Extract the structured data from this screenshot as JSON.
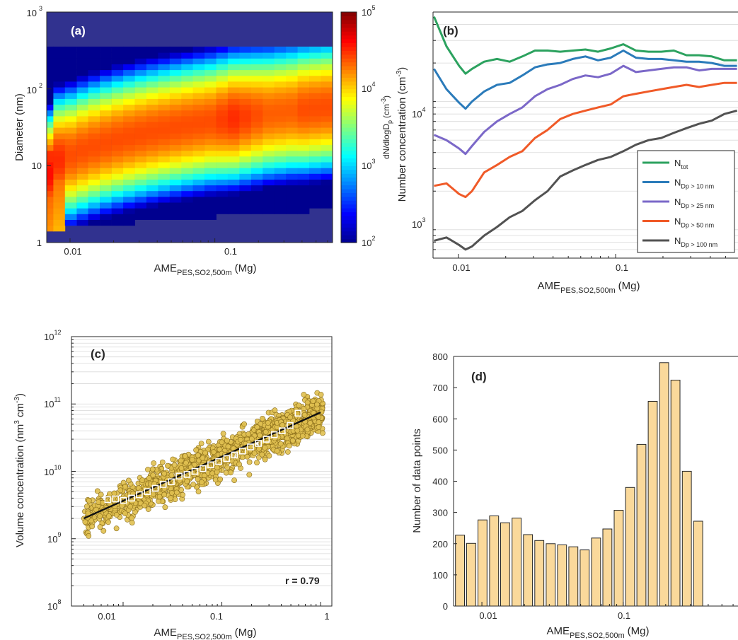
{
  "chart_data": [
    {
      "panel": "(a)",
      "type": "heatmap",
      "xlabel": "AME",
      "xlabel_sub": "PES,SO2,500m",
      "xlabel_unit": "(Mg)",
      "ylabel": "Diameter (nm)",
      "xscale": "log",
      "yscale": "log",
      "xlim": [
        0.0069,
        0.65
      ],
      "ylim": [
        1,
        1000
      ],
      "x_ticks": [
        0.01,
        0.1
      ],
      "x_tick_labels": [
        "0.01",
        "0.1"
      ],
      "y_ticks": [
        1,
        10,
        100,
        1000
      ],
      "y_tick_labels": [
        "1",
        "10"
      ],
      "y_tick_labels_pow": [
        {
          "base": "10",
          "exp": "2"
        },
        {
          "base": "10",
          "exp": "3"
        }
      ],
      "colorbar": {
        "label": "dN/dlogD",
        "label_sub": "p",
        "label_unit": "(cm",
        "label_unit_exp": "-3",
        "label_unit_end": ")",
        "scale": "log",
        "range": [
          100,
          100000
        ],
        "ticks": [
          {
            "base": "10",
            "exp": "2"
          },
          {
            "base": "10",
            "exp": "3"
          },
          {
            "base": "10",
            "exp": "4"
          },
          {
            "base": "10",
            "exp": "5"
          }
        ]
      },
      "columns_x": [
        0.007,
        0.0084,
        0.0101,
        0.0122,
        0.0146,
        0.0176,
        0.0212,
        0.0255,
        0.0307,
        0.0369,
        0.0444,
        0.0534,
        0.0643,
        0.0773,
        0.093,
        0.112,
        0.1346,
        0.162,
        0.195,
        0.2345,
        0.2822,
        0.3395,
        0.4085,
        0.4915,
        0.5914
      ],
      "mode_diameter_nm": [
        8,
        12,
        14,
        16,
        18,
        20,
        22,
        24,
        26,
        28,
        30,
        32,
        34,
        36,
        38,
        40,
        42,
        44,
        46,
        48,
        50,
        52,
        54,
        56,
        58
      ],
      "peak_log10_dNdlogDp": [
        4.6,
        4.5,
        4.4,
        4.4,
        4.4,
        4.4,
        4.4,
        4.4,
        4.4,
        4.4,
        4.4,
        4.4,
        4.4,
        4.4,
        4.4,
        4.45,
        4.5,
        4.45,
        4.4,
        4.35,
        4.35,
        4.35,
        4.4,
        4.4,
        4.4
      ],
      "lower_edge_nm": [
        1.35,
        1.45,
        1.55,
        1.6,
        1.65,
        1.7,
        1.75,
        1.8,
        1.85,
        1.9,
        1.95,
        2.0,
        2.05,
        2.1,
        2.15,
        2.2,
        2.25,
        2.3,
        2.35,
        2.4,
        2.45,
        2.5,
        2.55,
        2.6,
        2.65
      ],
      "upper_edge_nm": [
        350,
        350,
        350,
        350,
        350,
        350,
        350,
        350,
        350,
        350,
        350,
        350,
        350,
        350,
        350,
        350,
        350,
        350,
        350,
        350,
        350,
        350,
        350,
        350,
        350
      ]
    },
    {
      "panel": "(b)",
      "type": "line",
      "xlabel": "AME",
      "xlabel_sub": "PES,SO2,500m",
      "xlabel_unit": "(Mg)",
      "ylabel": "Number concentration (cm",
      "ylabel_exp": "-3",
      "ylabel_end": ")",
      "xscale": "log",
      "yscale": "log",
      "xlim": [
        0.0069,
        0.6
      ],
      "ylim": [
        600,
        50000
      ],
      "x_ticks": [
        0.01,
        0.1
      ],
      "x_tick_labels": [
        "0.01",
        "0.1"
      ],
      "y_ticks": [
        1000,
        10000
      ],
      "y_tick_labels_pow": [
        {
          "base": "10",
          "exp": "3"
        },
        {
          "base": "10",
          "exp": "4"
        }
      ],
      "legend_position": "bottom-right",
      "x": [
        0.007,
        0.0084,
        0.0101,
        0.0111,
        0.0122,
        0.0146,
        0.0176,
        0.0212,
        0.0255,
        0.0307,
        0.0369,
        0.0444,
        0.0534,
        0.0643,
        0.0773,
        0.093,
        0.112,
        0.1346,
        0.162,
        0.195,
        0.2345,
        0.2822,
        0.3395,
        0.4085,
        0.4915,
        0.5914
      ],
      "series": [
        {
          "name": "N",
          "sub": "tot",
          "color": "#2ca25f",
          "values": [
            46000,
            27000,
            19000,
            16500,
            18000,
            20500,
            21500,
            20500,
            22500,
            25000,
            25000,
            24500,
            25000,
            25500,
            24500,
            26000,
            28000,
            25000,
            24500,
            24500,
            25000,
            23000,
            23000,
            22500,
            21000,
            21000
          ]
        },
        {
          "name": "N",
          "sub": "Dp > 10 nm",
          "color": "#2b7bba",
          "values": [
            18000,
            12500,
            9800,
            8800,
            10000,
            12000,
            13500,
            14000,
            16000,
            18500,
            19500,
            20000,
            21500,
            22500,
            21000,
            22000,
            25000,
            22000,
            21500,
            21500,
            21000,
            20500,
            20500,
            20000,
            19000,
            19000
          ]
        },
        {
          "name": "N",
          "sub": "Dp > 25 nm",
          "color": "#7b68c8",
          "values": [
            5500,
            5000,
            4300,
            3900,
            4500,
            5800,
            7000,
            8000,
            9000,
            11000,
            12500,
            13500,
            15000,
            16000,
            15500,
            16500,
            19000,
            17000,
            17500,
            18000,
            18500,
            18500,
            17500,
            18000,
            18000,
            18000
          ]
        },
        {
          "name": "N",
          "sub": "Dp > 50 nm",
          "color": "#f05a28",
          "values": [
            2200,
            2300,
            1900,
            1800,
            2000,
            2800,
            3200,
            3700,
            4100,
            5200,
            6000,
            7300,
            8000,
            8500,
            9000,
            9500,
            11000,
            11500,
            12000,
            12500,
            13000,
            13500,
            13000,
            13500,
            14000,
            14000
          ]
        },
        {
          "name": "N",
          "sub": "Dp > 100 nm",
          "color": "#525252",
          "values": [
            820,
            870,
            760,
            700,
            740,
            900,
            1050,
            1250,
            1400,
            1700,
            2000,
            2600,
            2900,
            3200,
            3500,
            3700,
            4100,
            4600,
            5000,
            5200,
            5700,
            6200,
            6700,
            7100,
            8000,
            8500
          ]
        }
      ]
    },
    {
      "panel": "(c)",
      "type": "scatter",
      "xlabel": "AME",
      "xlabel_sub": "PES,SO2,500m",
      "xlabel_unit": "(Mg)",
      "ylabel": "Volume concentration (nm",
      "ylabel_exp1": "3",
      "ylabel_mid": " cm",
      "ylabel_exp2": "-3",
      "ylabel_end": ")",
      "xscale": "log",
      "yscale": "log",
      "xlim": [
        0.003,
        1.3
      ],
      "ylim": [
        100000000,
        1000000000000
      ],
      "x_ticks": [
        0.01,
        0.1,
        1
      ],
      "x_tick_labels": [
        "0.01",
        "0.1",
        "1"
      ],
      "y_ticks": [
        100000000,
        1000000000,
        10000000000,
        100000000000,
        1000000000000
      ],
      "y_tick_labels_pow": [
        {
          "base": "10",
          "exp": "8"
        },
        {
          "base": "10",
          "exp": "9"
        },
        {
          "base": "10",
          "exp": "10"
        },
        {
          "base": "10",
          "exp": "11"
        },
        {
          "base": "10",
          "exp": "12"
        }
      ],
      "annotation": "r = 0.79",
      "point_color": "#e0c050",
      "fit_line": {
        "x": [
          0.004,
          1.0
        ],
        "y": [
          2000000000,
          75000000000
        ]
      },
      "binned_medians": {
        "x": [
          0.007,
          0.0084,
          0.0101,
          0.0122,
          0.0146,
          0.0176,
          0.0212,
          0.0255,
          0.0307,
          0.0369,
          0.0444,
          0.0534,
          0.0643,
          0.0773,
          0.093,
          0.112,
          0.1346,
          0.162,
          0.195,
          0.2345,
          0.2822,
          0.3395,
          0.4085,
          0.4915,
          0.5914
        ],
        "y": [
          3800000000,
          3900000000,
          3700000000,
          4000000000,
          4500000000,
          5000000000,
          5600000000,
          6400000000,
          7000000000,
          8500000000,
          9000000000,
          10000000000,
          11000000000,
          12500000000,
          14000000000,
          15500000000,
          17500000000,
          20000000000,
          23000000000,
          26000000000,
          30000000000,
          35000000000,
          40000000000,
          48000000000,
          73000000000
        ]
      }
    },
    {
      "panel": "(d)",
      "type": "bar",
      "xlabel": "AME",
      "xlabel_sub": "PES,SO2,500m",
      "xlabel_unit": "(Mg)",
      "ylabel": "Number of data points",
      "xscale": "log",
      "xlim": [
        0.0063,
        0.65
      ],
      "ylim": [
        0,
        800
      ],
      "y_ticks": [
        0,
        100,
        200,
        300,
        400,
        500,
        600,
        700,
        800
      ],
      "x_ticks": [
        0.01,
        0.1
      ],
      "x_tick_labels": [
        "0.01",
        "0.1"
      ],
      "bar_color": "#fad99b",
      "x": [
        0.007,
        0.0084,
        0.0101,
        0.0122,
        0.0146,
        0.0176,
        0.0212,
        0.0255,
        0.0307,
        0.0369,
        0.0444,
        0.0534,
        0.0643,
        0.0773,
        0.093,
        0.112,
        0.1346,
        0.162,
        0.195,
        0.2345,
        0.2822,
        0.3395,
        0.4085,
        0.4915,
        0.5914
      ],
      "values": [
        227,
        201,
        276,
        289,
        267,
        282,
        229,
        210,
        200,
        196,
        190,
        180,
        218,
        247,
        307,
        380,
        518,
        656,
        780,
        724,
        432,
        272,
        0,
        0,
        0
      ]
    }
  ]
}
